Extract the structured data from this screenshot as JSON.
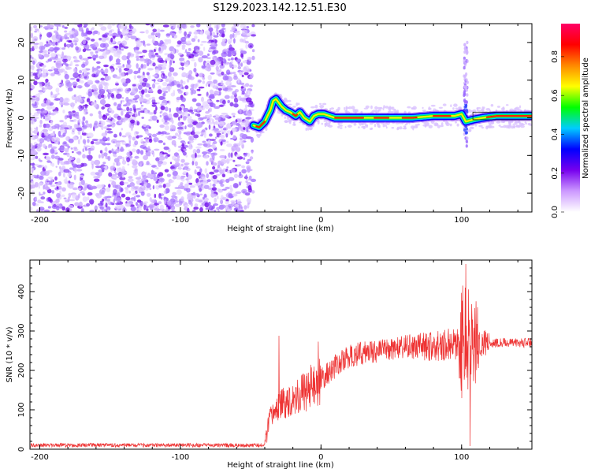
{
  "title": "S129.2023.142.12.51.E30",
  "chart_data": [
    {
      "type": "heatmap",
      "xlabel": "Height of straight line (km)",
      "ylabel": "Frequency (Hz)",
      "xlim": [
        -207,
        150
      ],
      "ylim": [
        -25,
        25
      ],
      "x_ticks": [
        -200,
        -100,
        0,
        100
      ],
      "y_ticks": [
        -20,
        -10,
        0,
        10,
        20
      ],
      "noise_region": [
        -207,
        -48
      ],
      "ridge": {
        "x": [
          -48,
          -44,
          -40,
          -36,
          -34,
          -32,
          -30,
          -28,
          -25,
          -22,
          -18,
          -15,
          -12,
          -8,
          -5,
          -2,
          2,
          6,
          10,
          20,
          35,
          50,
          65,
          80,
          90,
          95,
          100,
          103,
          108,
          115,
          125,
          140,
          150
        ],
        "y": [
          -2,
          -2.5,
          -1,
          2,
          4.5,
          5,
          4,
          3,
          2,
          1.5,
          0.5,
          1.5,
          0,
          -1,
          0.5,
          1,
          1,
          0.5,
          0,
          0,
          0,
          0,
          0,
          0.5,
          0.5,
          0.5,
          1,
          -1,
          -0.5,
          0,
          0.5,
          0.5,
          0.5
        ]
      },
      "burst_x": 103,
      "burst_range": [
        -8,
        20
      ],
      "colorbar": {
        "label": "Normalized spectral amplitude",
        "range": [
          0,
          0.97
        ],
        "ticks": [
          "0.0",
          "0.2",
          "0.4",
          "0.6",
          "0.8"
        ],
        "tick_values": [
          0,
          0.2,
          0.4,
          0.6,
          0.8
        ],
        "colors": [
          "#ffffff",
          "#cc99ff",
          "#7700ee",
          "#0000ff",
          "#00ccff",
          "#00ff00",
          "#ffff00",
          "#ff8800",
          "#ff0000",
          "#ff0066"
        ]
      }
    },
    {
      "type": "line",
      "xlabel": "Height of straight line (km)",
      "ylabel": "SNR (10 * v/v)",
      "xlim": [
        -207,
        150
      ],
      "ylim": [
        0,
        480
      ],
      "x_ticks": [
        -200,
        -100,
        0,
        100
      ],
      "y_ticks": [
        0,
        100,
        200,
        300,
        400
      ],
      "color": "#ee3333",
      "trend": {
        "x": [
          -207,
          -40,
          -36,
          -30,
          -20,
          -10,
          0,
          10,
          20,
          30,
          40,
          50,
          60,
          70,
          80,
          90,
          100,
          110,
          120,
          150
        ],
        "y": [
          10,
          10,
          80,
          110,
          130,
          150,
          175,
          210,
          235,
          245,
          250,
          255,
          258,
          260,
          262,
          265,
          270,
          270,
          270,
          270
        ]
      },
      "spikes": [
        {
          "x": -30,
          "y": 288
        },
        {
          "x": -2,
          "y": 273
        },
        {
          "x": 103,
          "y": 470
        },
        {
          "x": 106,
          "y": 8
        }
      ]
    }
  ]
}
